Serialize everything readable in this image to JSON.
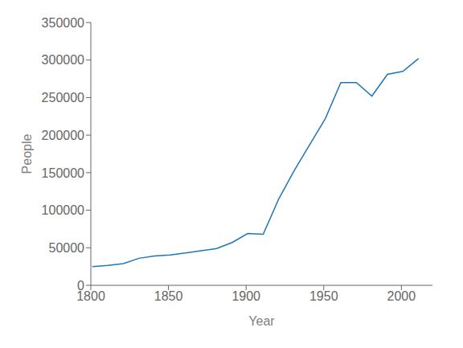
{
  "chart_data": {
    "type": "line",
    "x": [
      1801,
      1811,
      1821,
      1831,
      1841,
      1851,
      1861,
      1871,
      1881,
      1891,
      1901,
      1911,
      1921,
      1931,
      1951,
      1961,
      1971,
      1981,
      1991,
      2001,
      2011
    ],
    "values": [
      25000,
      26500,
      29000,
      36000,
      39000,
      40500,
      43000,
      46000,
      49000,
      57000,
      69000,
      68000,
      115000,
      153000,
      222000,
      270000,
      270000,
      252000,
      281000,
      285000,
      302000
    ],
    "color": "#1f77b4",
    "xlabel": "Year",
    "ylabel": "People",
    "xlim": [
      1800,
      2020
    ],
    "xticks": [
      1800,
      1850,
      1900,
      1950,
      2000
    ],
    "ylim": [
      0,
      350000
    ],
    "yticks": [
      0,
      50000,
      100000,
      150000,
      200000,
      250000,
      300000,
      350000
    ]
  }
}
